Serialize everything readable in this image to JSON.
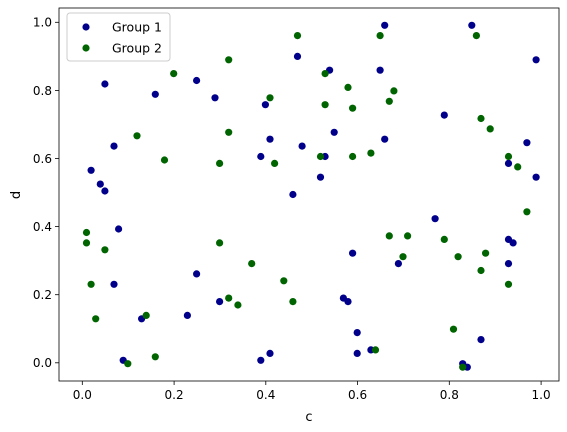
{
  "chart_data": {
    "type": "scatter",
    "title": "",
    "xlabel": "c",
    "ylabel": "d",
    "xlim": [
      -0.05,
      1.04
    ],
    "ylim": [
      -0.04,
      1.04
    ],
    "xticks": [
      "0.0",
      "0.2",
      "0.4",
      "0.6",
      "0.8",
      "1.0"
    ],
    "yticks": [
      "0.0",
      "0.2",
      "0.4",
      "0.6",
      "0.8",
      "1.0"
    ],
    "grid": false,
    "legend_position": "top-left",
    "series": [
      {
        "name": "Group 1",
        "color": "#00008b",
        "points": [
          [
            0.02,
            0.57
          ],
          [
            0.04,
            0.53
          ],
          [
            0.05,
            0.51
          ],
          [
            0.05,
            0.82
          ],
          [
            0.07,
            0.64
          ],
          [
            0.07,
            0.24
          ],
          [
            0.08,
            0.4
          ],
          [
            0.09,
            0.02
          ],
          [
            0.13,
            0.14
          ],
          [
            0.16,
            0.79
          ],
          [
            0.23,
            0.15
          ],
          [
            0.25,
            0.27
          ],
          [
            0.25,
            0.83
          ],
          [
            0.29,
            0.78
          ],
          [
            0.3,
            0.19
          ],
          [
            0.39,
            0.61
          ],
          [
            0.4,
            0.76
          ],
          [
            0.39,
            0.02
          ],
          [
            0.41,
            0.66
          ],
          [
            0.41,
            0.04
          ],
          [
            0.46,
            0.5
          ],
          [
            0.47,
            0.9
          ],
          [
            0.48,
            0.64
          ],
          [
            0.52,
            0.55
          ],
          [
            0.53,
            0.61
          ],
          [
            0.54,
            0.86
          ],
          [
            0.55,
            0.68
          ],
          [
            0.57,
            0.2
          ],
          [
            0.59,
            0.33
          ],
          [
            0.58,
            0.19
          ],
          [
            0.6,
            0.04
          ],
          [
            0.6,
            0.1
          ],
          [
            0.63,
            0.05
          ],
          [
            0.65,
            0.86
          ],
          [
            0.66,
            0.66
          ],
          [
            0.66,
            0.99
          ],
          [
            0.69,
            0.3
          ],
          [
            0.77,
            0.43
          ],
          [
            0.79,
            0.73
          ],
          [
            0.83,
            0.01
          ],
          [
            0.84,
            0.0
          ],
          [
            0.85,
            0.99
          ],
          [
            0.87,
            0.08
          ],
          [
            0.93,
            0.37
          ],
          [
            0.93,
            0.59
          ],
          [
            0.93,
            0.3
          ],
          [
            0.94,
            0.36
          ],
          [
            0.97,
            0.65
          ],
          [
            0.99,
            0.89
          ],
          [
            0.99,
            0.55
          ]
        ]
      },
      {
        "name": "Group 2",
        "color": "#006400",
        "points": [
          [
            0.01,
            0.39
          ],
          [
            0.01,
            0.36
          ],
          [
            0.02,
            0.24
          ],
          [
            0.03,
            0.14
          ],
          [
            0.05,
            0.34
          ],
          [
            0.1,
            0.01
          ],
          [
            0.12,
            0.67
          ],
          [
            0.14,
            0.15
          ],
          [
            0.16,
            0.03
          ],
          [
            0.18,
            0.6
          ],
          [
            0.2,
            0.85
          ],
          [
            0.3,
            0.36
          ],
          [
            0.3,
            0.59
          ],
          [
            0.32,
            0.2
          ],
          [
            0.32,
            0.89
          ],
          [
            0.32,
            0.68
          ],
          [
            0.34,
            0.18
          ],
          [
            0.37,
            0.3
          ],
          [
            0.41,
            0.78
          ],
          [
            0.42,
            0.59
          ],
          [
            0.44,
            0.25
          ],
          [
            0.46,
            0.19
          ],
          [
            0.47,
            0.96
          ],
          [
            0.52,
            0.61
          ],
          [
            0.53,
            0.85
          ],
          [
            0.53,
            0.76
          ],
          [
            0.58,
            0.81
          ],
          [
            0.59,
            0.61
          ],
          [
            0.59,
            0.75
          ],
          [
            0.63,
            0.62
          ],
          [
            0.64,
            0.05
          ],
          [
            0.65,
            0.96
          ],
          [
            0.67,
            0.77
          ],
          [
            0.67,
            0.38
          ],
          [
            0.68,
            0.8
          ],
          [
            0.7,
            0.32
          ],
          [
            0.71,
            0.38
          ],
          [
            0.79,
            0.37
          ],
          [
            0.81,
            0.11
          ],
          [
            0.82,
            0.32
          ],
          [
            0.83,
            0.0
          ],
          [
            0.86,
            0.96
          ],
          [
            0.87,
            0.28
          ],
          [
            0.87,
            0.72
          ],
          [
            0.88,
            0.33
          ],
          [
            0.89,
            0.69
          ],
          [
            0.93,
            0.24
          ],
          [
            0.93,
            0.61
          ],
          [
            0.95,
            0.58
          ],
          [
            0.97,
            0.45
          ]
        ]
      }
    ]
  }
}
